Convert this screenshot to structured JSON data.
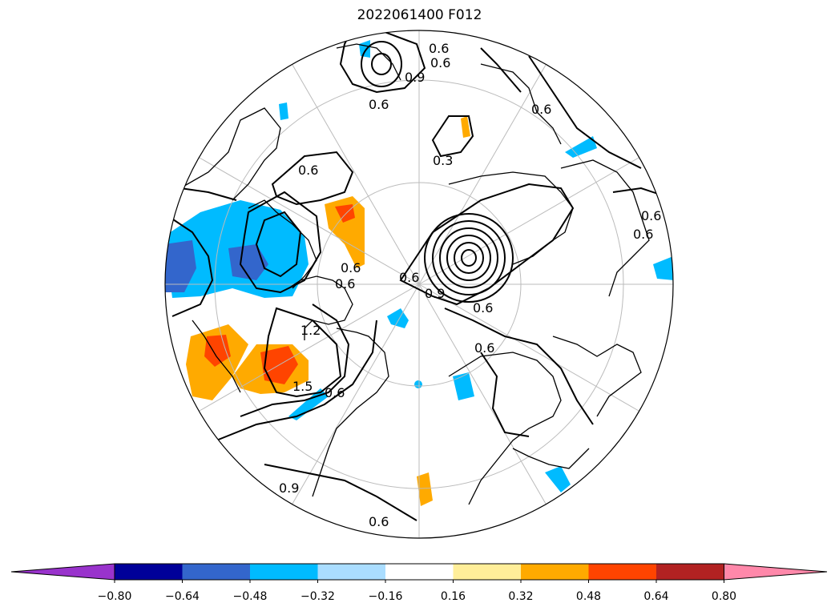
{
  "title": "2022061400 F012",
  "colorbar": {
    "colors": [
      "#9933cc",
      "#000099",
      "#3366cc",
      "#00bbff",
      "#aaddff",
      "#ffffff",
      "#ffee99",
      "#ffaa00",
      "#ff4400",
      "#b22222",
      "#ff88aa"
    ],
    "ticks": [
      "−0.80",
      "−0.64",
      "−0.48",
      "−0.32",
      "−0.16",
      "0.16",
      "0.32",
      "0.48",
      "0.64",
      "0.80"
    ],
    "extend": "both"
  },
  "contour_labels": [
    "0.6",
    "0.6",
    "0.9",
    "0.6",
    "0.3",
    "0.6",
    "0.6",
    "0.6",
    "0.6",
    "0.6",
    "0.9",
    "0.6",
    "1.2",
    "1.5",
    "0.6",
    "0.6",
    "0.9",
    "0.6",
    "0.6",
    "0.6"
  ],
  "projection": "north-polar-stereographic"
}
